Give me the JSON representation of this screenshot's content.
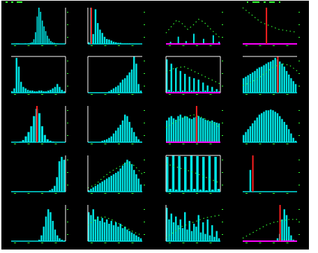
{
  "colors": {
    "background": "#000000",
    "bar": "#00e5e5",
    "frame": "#ffffff",
    "baseline": "#ff00ff",
    "marker": "#ff2020",
    "overlay_dots": "#33ff33"
  },
  "chart_data": [
    {
      "type": "bar",
      "row": 0,
      "col": 0,
      "values": [
        0,
        0,
        0,
        1,
        1,
        0,
        0,
        0,
        1,
        0,
        1,
        2,
        3,
        8,
        20,
        47,
        62,
        55,
        40,
        30,
        22,
        14,
        9,
        5,
        3,
        2,
        1,
        1,
        0,
        0,
        0,
        0
      ],
      "marker": null,
      "overlay": null,
      "frame": "right"
    },
    {
      "type": "bar",
      "row": 0,
      "col": 1,
      "values": [
        3,
        66,
        18,
        63,
        38,
        26,
        20,
        13,
        9,
        8,
        6,
        4,
        3,
        2,
        2,
        1,
        1,
        1,
        1,
        0,
        0,
        0,
        0,
        0
      ],
      "marker": 1,
      "overlay": null,
      "frame": "left-bottom"
    },
    {
      "type": "bar",
      "row": 0,
      "col": 2,
      "values": [
        0,
        0,
        3,
        0,
        0,
        0,
        10,
        0,
        0,
        0,
        4,
        0,
        0,
        0,
        14,
        0,
        0,
        0,
        0,
        7,
        0,
        0,
        0,
        0,
        12,
        0,
        0,
        3
      ],
      "marker": null,
      "overlay": [
        15,
        24,
        33,
        28,
        20,
        26,
        34,
        30,
        22,
        15,
        8
      ],
      "frame": "none",
      "baseline": true
    },
    {
      "type": "bar",
      "row": 0,
      "col": 3,
      "values": [
        0,
        0,
        0,
        0,
        0,
        0,
        0,
        0,
        0,
        0,
        0,
        0,
        0,
        0,
        0,
        0,
        0,
        0,
        0,
        0,
        0,
        0,
        0,
        0
      ],
      "marker": 10,
      "overlay": [
        50,
        40,
        30,
        25,
        20,
        18,
        16
      ],
      "frame": "none",
      "baseline": true
    },
    {
      "type": "bar",
      "row": 1,
      "col": 0,
      "values": [
        2,
        6,
        48,
        36,
        15,
        8,
        6,
        4,
        3,
        3,
        2,
        2,
        3,
        3,
        2,
        2,
        3,
        4,
        6,
        8,
        12,
        8,
        4,
        2
      ],
      "marker": null,
      "overlay": null,
      "frame": "top-right"
    },
    {
      "type": "bar",
      "row": 1,
      "col": 1,
      "values": [
        0,
        0,
        0,
        0,
        0,
        0,
        0,
        0,
        0,
        2,
        4,
        6,
        8,
        10,
        14,
        18,
        20,
        24,
        28,
        32,
        50,
        40,
        12,
        3
      ],
      "marker": null,
      "overlay": null,
      "frame": "top-left-bottom"
    },
    {
      "type": "bar",
      "row": 1,
      "col": 2,
      "values": [
        46,
        4,
        40,
        2,
        34,
        2,
        30,
        3,
        26,
        2,
        22,
        3,
        20,
        2,
        18,
        2,
        14,
        3,
        10,
        2,
        8,
        2,
        5,
        2
      ],
      "marker": null,
      "overlay": [
        28,
        34,
        36,
        30,
        24,
        18,
        12
      ],
      "frame": "box",
      "baseline": true
    },
    {
      "type": "bar",
      "row": 1,
      "col": 3,
      "values": [
        20,
        22,
        24,
        26,
        28,
        30,
        33,
        35,
        36,
        38,
        40,
        42,
        43,
        45,
        48,
        46,
        43,
        40,
        36,
        30,
        25,
        20,
        16,
        12
      ],
      "marker": 15,
      "overlay": [
        10,
        14,
        20,
        28,
        36,
        40,
        38,
        30
      ],
      "frame": "top"
    },
    {
      "type": "bar",
      "row": 2,
      "col": 0,
      "values": [
        0,
        0,
        0,
        1,
        3,
        8,
        14,
        22,
        36,
        46,
        40,
        22,
        10,
        4,
        2,
        1,
        0,
        0,
        0,
        0
      ],
      "marker": 9,
      "overlay": null,
      "frame": "right"
    },
    {
      "type": "bar",
      "row": 2,
      "col": 1,
      "values": [
        0,
        0,
        0,
        0,
        0,
        0,
        2,
        3,
        4,
        6,
        8,
        12,
        16,
        20,
        24,
        30,
        38,
        36,
        28,
        20,
        14,
        8,
        4,
        1
      ],
      "marker": null,
      "overlay": null,
      "frame": "left-bottom"
    },
    {
      "type": "bar",
      "row": 2,
      "col": 2,
      "values": [
        30,
        34,
        36,
        33,
        31,
        36,
        38,
        34,
        36,
        35,
        33,
        32,
        34,
        35,
        36,
        34,
        33,
        31,
        30,
        29,
        30,
        28,
        27,
        26
      ],
      "marker": 13,
      "overlay": [
        20,
        28,
        34,
        38,
        34,
        28,
        20
      ],
      "frame": "none",
      "baseline": true
    },
    {
      "type": "bar",
      "row": 2,
      "col": 3,
      "values": [
        10,
        14,
        18,
        22,
        26,
        30,
        34,
        38,
        40,
        42,
        44,
        44,
        45,
        44,
        42,
        40,
        36,
        32,
        28,
        24,
        18,
        12,
        6,
        2
      ],
      "marker": null,
      "overlay": null,
      "frame": "none"
    },
    {
      "type": "bar",
      "row": 3,
      "col": 0,
      "values": [
        0,
        0,
        0,
        0,
        0,
        0,
        0,
        0,
        0,
        0,
        0,
        0,
        0,
        0,
        0,
        0,
        2,
        4,
        8,
        20,
        42,
        48,
        44
      ],
      "marker": null,
      "overlay": null,
      "frame": "right"
    },
    {
      "type": "bar",
      "row": 3,
      "col": 1,
      "values": [
        2,
        4,
        6,
        8,
        10,
        12,
        14,
        16,
        18,
        20,
        22,
        24,
        26,
        28,
        32,
        36,
        40,
        44,
        42,
        38,
        30,
        24,
        18,
        10
      ],
      "marker": null,
      "overlay": [
        5,
        10,
        20,
        28,
        34,
        40,
        36,
        24
      ],
      "frame": "left-bottom"
    },
    {
      "type": "bar",
      "row": 3,
      "col": 2,
      "values": [
        50,
        4,
        52,
        3,
        51,
        2,
        50,
        3,
        52,
        4,
        51,
        3,
        50,
        2,
        51,
        3,
        50,
        4
      ],
      "marker": null,
      "overlay": [
        40,
        34,
        28,
        20,
        12
      ],
      "frame": "box"
    },
    {
      "type": "bar",
      "row": 3,
      "col": 3,
      "values": [
        0,
        0,
        0,
        30,
        0,
        0,
        0,
        0,
        0,
        0,
        0,
        0,
        0,
        0,
        0,
        0,
        0,
        0,
        0,
        0,
        0,
        0,
        0,
        0
      ],
      "marker": 4,
      "overlay": null,
      "frame": "none"
    },
    {
      "type": "bar",
      "row": 4,
      "col": 0,
      "values": [
        0,
        0,
        0,
        0,
        0,
        0,
        0,
        0,
        0,
        0,
        0,
        0,
        2,
        8,
        20,
        34,
        44,
        40,
        28,
        16,
        8,
        4,
        2,
        1
      ],
      "marker": null,
      "overlay": null,
      "frame": "right"
    },
    {
      "type": "bar",
      "row": 4,
      "col": 1,
      "values": [
        40,
        36,
        44,
        30,
        34,
        28,
        32,
        26,
        30,
        24,
        28,
        22,
        26,
        20,
        24,
        18,
        20,
        16,
        14,
        12,
        10,
        8,
        6,
        4
      ],
      "marker": null,
      "overlay": [
        22,
        30,
        34,
        30,
        24,
        18,
        12,
        8
      ],
      "frame": "left-bottom"
    },
    {
      "type": "bar",
      "row": 4,
      "col": 2,
      "values": [
        46,
        30,
        38,
        26,
        34,
        22,
        30,
        18,
        40,
        16,
        28,
        14,
        24,
        20,
        36,
        12,
        26,
        10,
        30,
        8,
        22,
        6,
        14,
        4
      ],
      "marker": null,
      "overlay": [
        5,
        12,
        20,
        24,
        28,
        32,
        34,
        36
      ],
      "frame": "left"
    },
    {
      "type": "bar",
      "row": 4,
      "col": 3,
      "values": [
        0,
        0,
        0,
        0,
        0,
        0,
        0,
        0,
        0,
        0,
        0,
        0,
        0,
        0,
        1,
        4,
        10,
        30,
        44,
        36,
        20,
        8,
        2,
        0
      ],
      "marker": 16,
      "overlay": [
        4,
        10,
        16,
        22,
        26,
        28,
        30,
        30
      ],
      "frame": "none",
      "baseline": true
    }
  ]
}
